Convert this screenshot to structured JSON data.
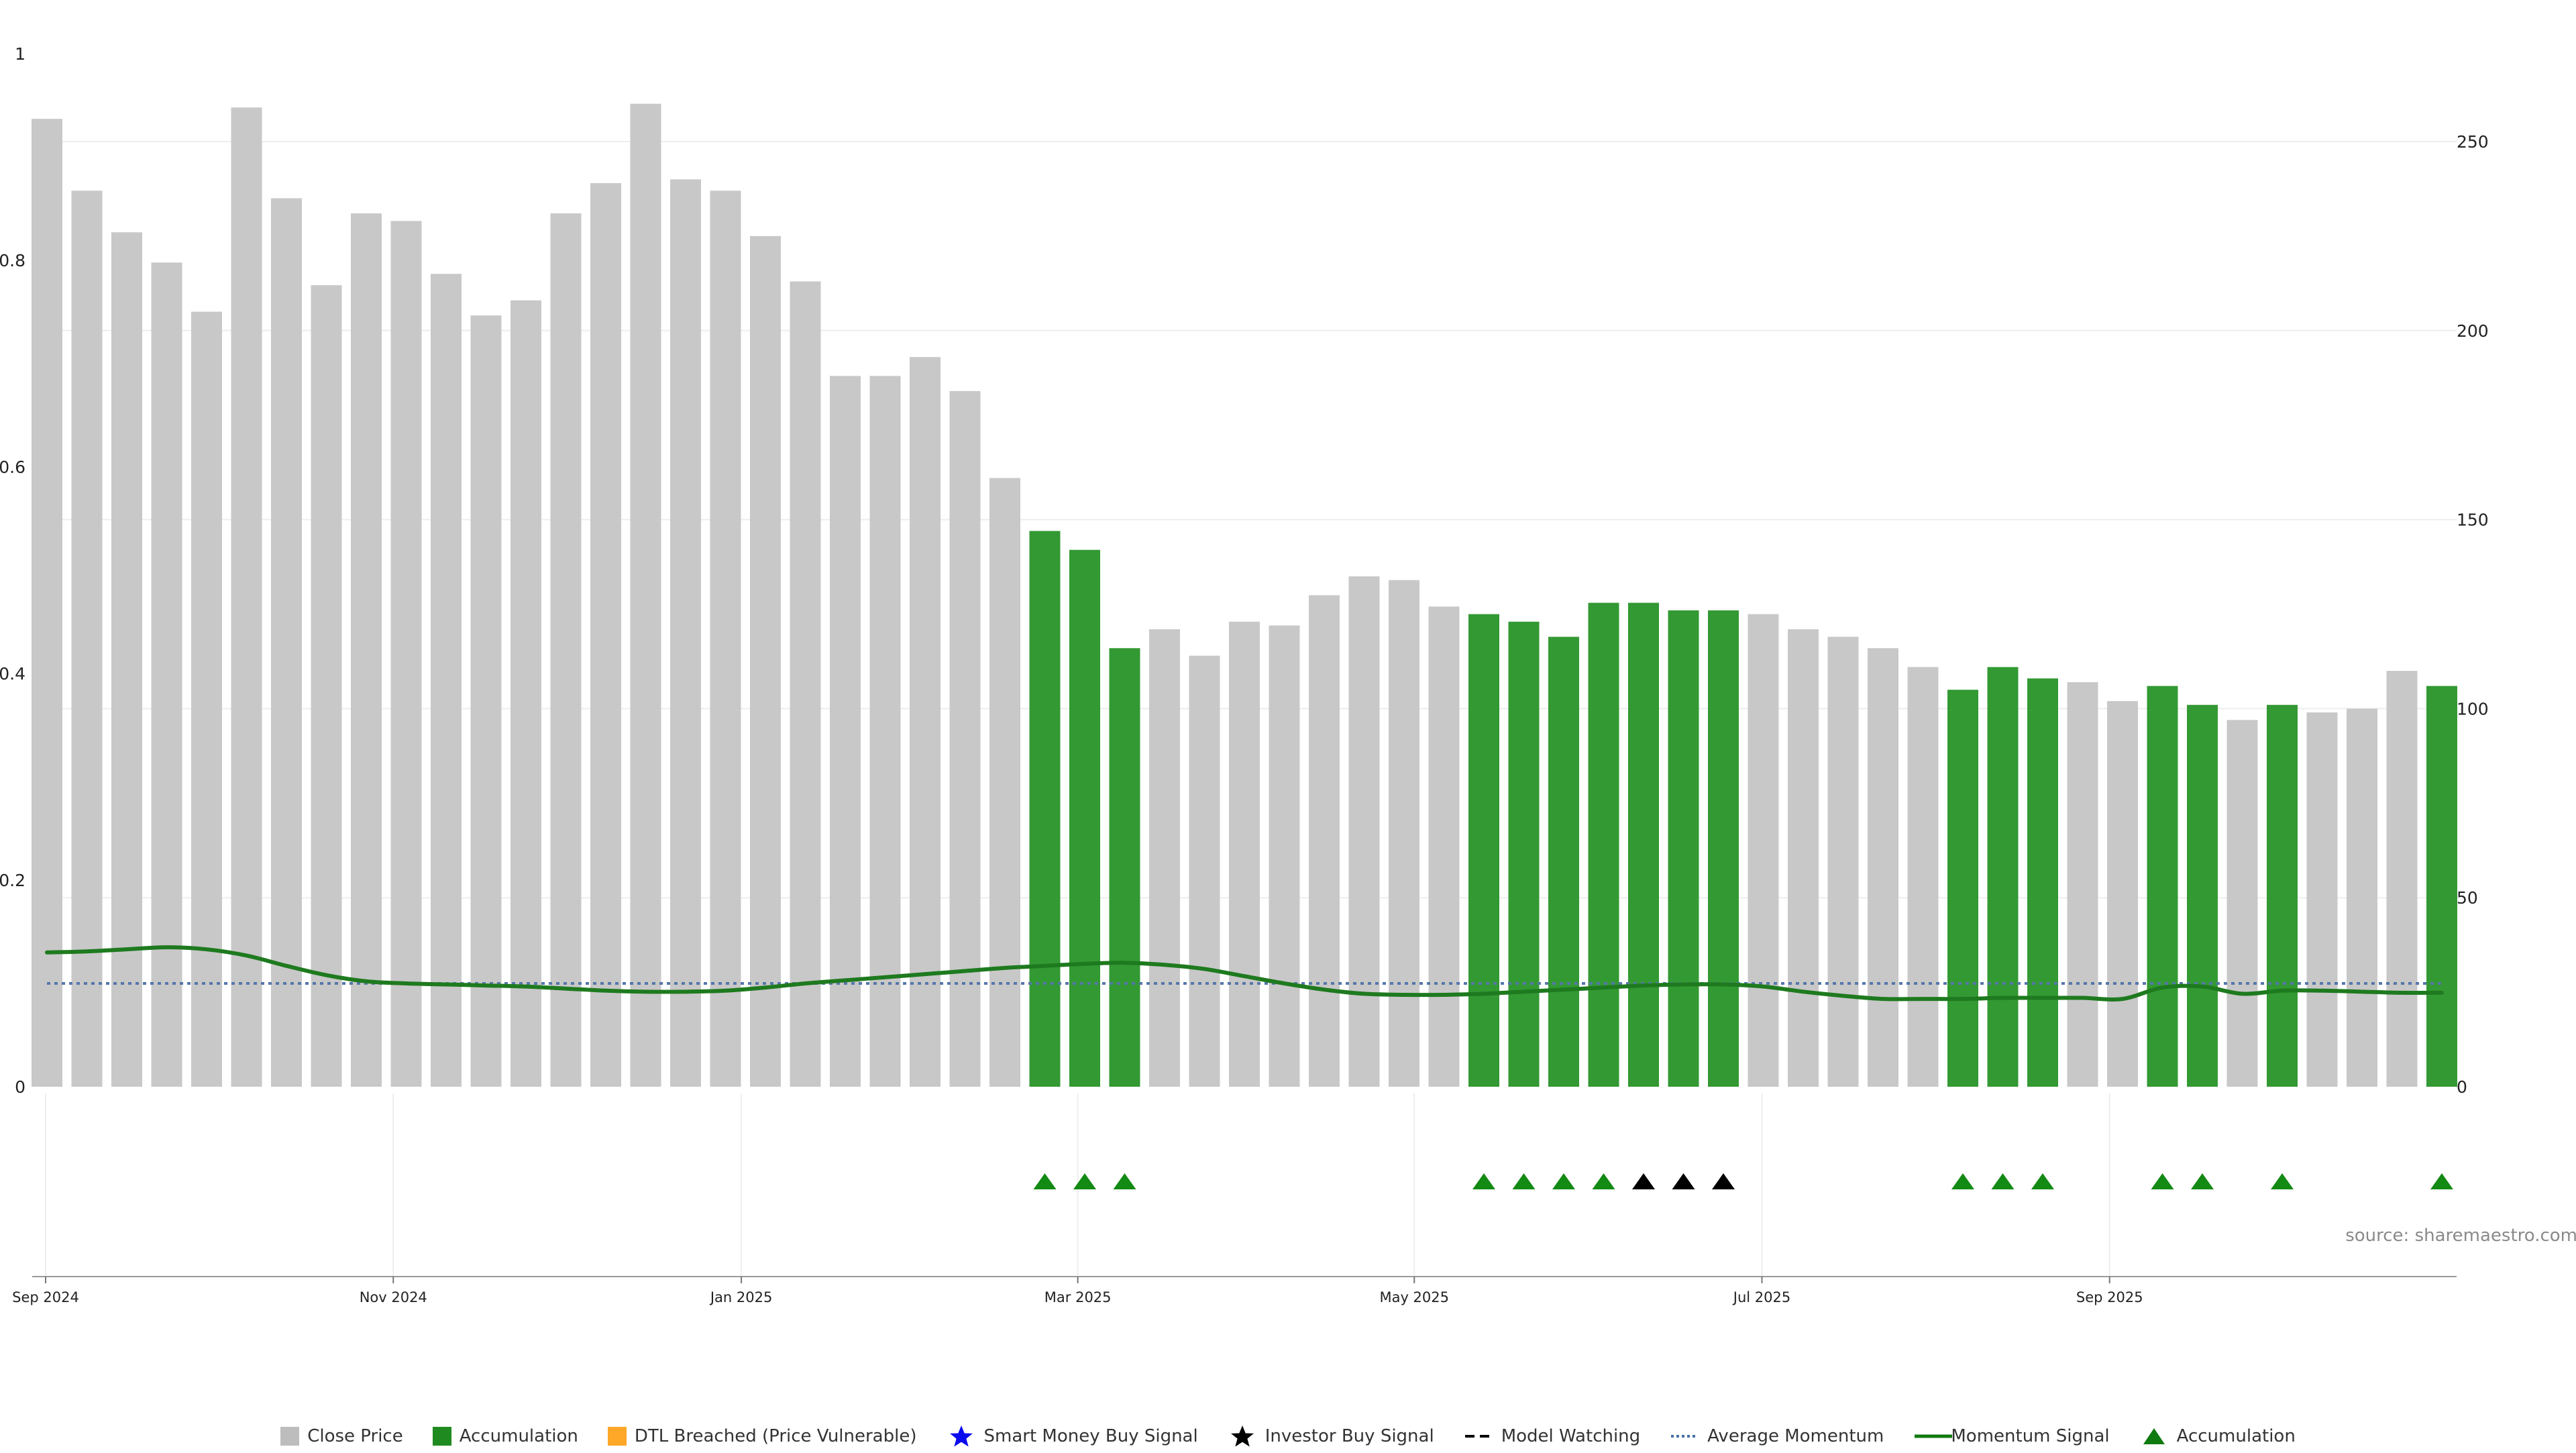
{
  "chart_data": {
    "type": "bar",
    "source_label": "source: sharemaestro.com",
    "left_axis": {
      "ylim": [
        0,
        1
      ],
      "ticks": [
        0,
        0.2,
        0.4,
        0.6,
        0.8,
        1
      ],
      "tick_labels": [
        "0",
        "0.2",
        "0.4",
        "0.6",
        "0.8",
        "1"
      ]
    },
    "right_axis": {
      "ylim": [
        0,
        275
      ],
      "ticks": [
        0,
        50,
        100,
        150,
        200,
        250
      ],
      "tick_labels": [
        "0",
        "50",
        "100",
        "150",
        "200",
        "250"
      ]
    },
    "x_axis": {
      "start": "2024-09-01",
      "end": "2025-11-02",
      "tick_labels": [
        "Sep 2024",
        "Nov 2024",
        "Jan 2025",
        "Mar 2025",
        "May 2025",
        "Jul 2025",
        "Sep 2025"
      ],
      "tick_weeks": [
        0,
        8.71,
        17.43,
        25.86,
        34.29,
        43,
        51.71
      ]
    },
    "series": [
      {
        "name": "Close Price",
        "axis": "right",
        "values": [
          256,
          237,
          226,
          218,
          205,
          259,
          235,
          212,
          231,
          229,
          215,
          204,
          208,
          231,
          239,
          260,
          240,
          237,
          225,
          213,
          188,
          188,
          193,
          184,
          161,
          147,
          142,
          116,
          121,
          114,
          123,
          122,
          130,
          135,
          134,
          127,
          125,
          123,
          119,
          128,
          128,
          126,
          126,
          125,
          121,
          119,
          116,
          111,
          105,
          111,
          108,
          107,
          102,
          106,
          101,
          97,
          101,
          99,
          100,
          110,
          106
        ],
        "accumulation": [
          false,
          false,
          false,
          false,
          false,
          false,
          false,
          false,
          false,
          false,
          false,
          false,
          false,
          false,
          false,
          false,
          false,
          false,
          false,
          false,
          false,
          false,
          false,
          false,
          false,
          true,
          true,
          true,
          false,
          false,
          false,
          false,
          false,
          false,
          false,
          false,
          true,
          true,
          true,
          true,
          true,
          true,
          true,
          false,
          false,
          false,
          false,
          false,
          true,
          true,
          true,
          false,
          false,
          true,
          true,
          false,
          true,
          false,
          false,
          false,
          true
        ]
      },
      {
        "name": "Momentum Signal",
        "axis": "left",
        "values": [
          0.13,
          0.131,
          0.133,
          0.135,
          0.133,
          0.127,
          0.117,
          0.108,
          0.102,
          0.1,
          0.099,
          0.098,
          0.097,
          0.095,
          0.093,
          0.092,
          0.092,
          0.093,
          0.096,
          0.1,
          0.103,
          0.106,
          0.109,
          0.112,
          0.115,
          0.117,
          0.119,
          0.12,
          0.118,
          0.114,
          0.107,
          0.1,
          0.094,
          0.09,
          0.089,
          0.089,
          0.09,
          0.092,
          0.094,
          0.096,
          0.098,
          0.099,
          0.099,
          0.097,
          0.092,
          0.088,
          0.085,
          0.085,
          0.085,
          0.086,
          0.086,
          0.086,
          0.085,
          0.096,
          0.097,
          0.09,
          0.093,
          0.093,
          0.092,
          0.091,
          0.091
        ]
      },
      {
        "name": "Average Momentum",
        "axis": "left",
        "values": [
          0.1
        ]
      }
    ],
    "markers": [
      {
        "week": 25,
        "type": "Accumulation"
      },
      {
        "week": 26,
        "type": "Accumulation"
      },
      {
        "week": 27,
        "type": "Accumulation"
      },
      {
        "week": 36,
        "type": "Accumulation"
      },
      {
        "week": 37,
        "type": "Accumulation"
      },
      {
        "week": 38,
        "type": "Accumulation"
      },
      {
        "week": 39,
        "type": "Accumulation"
      },
      {
        "week": 40,
        "type": "Investor"
      },
      {
        "week": 41,
        "type": "Investor"
      },
      {
        "week": 42,
        "type": "Investor"
      },
      {
        "week": 48,
        "type": "Accumulation"
      },
      {
        "week": 49,
        "type": "Accumulation"
      },
      {
        "week": 50,
        "type": "Accumulation"
      },
      {
        "week": 53,
        "type": "Accumulation"
      },
      {
        "week": 54,
        "type": "Accumulation"
      },
      {
        "week": 56,
        "type": "Accumulation"
      },
      {
        "week": 60,
        "type": "Accumulation"
      }
    ],
    "colors": {
      "close_price": "#c8c8c8",
      "accumulation": "#339933",
      "dtl": "#ffa500",
      "smart_money": "#0000ee",
      "investor": "#000000",
      "model_watching": "#000000",
      "avg_momentum": "#5577aa",
      "momentum": "#1e7a1e",
      "acc_marker": "#138a13"
    },
    "legend": [
      {
        "label": "Close Price",
        "icon": "square",
        "color": "#bdbdbd"
      },
      {
        "label": "Accumulation",
        "icon": "square",
        "color": "#1f8a1f"
      },
      {
        "label": "DTL Breached (Price Vulnerable)",
        "icon": "square",
        "color": "#ffa726"
      },
      {
        "label": "Smart Money Buy Signal",
        "icon": "star",
        "color": "#0a0aee"
      },
      {
        "label": "Investor Buy Signal",
        "icon": "star",
        "color": "#000000"
      },
      {
        "label": "Model Watching",
        "icon": "dash",
        "color": "#000000"
      },
      {
        "label": "Average Momentum",
        "icon": "dot",
        "color": "#4a6fa5"
      },
      {
        "label": "Momentum Signal",
        "icon": "line",
        "color": "#0f7a0f"
      },
      {
        "label": "Accumulation",
        "icon": "triangle",
        "color": "#0f7a0f"
      }
    ]
  }
}
